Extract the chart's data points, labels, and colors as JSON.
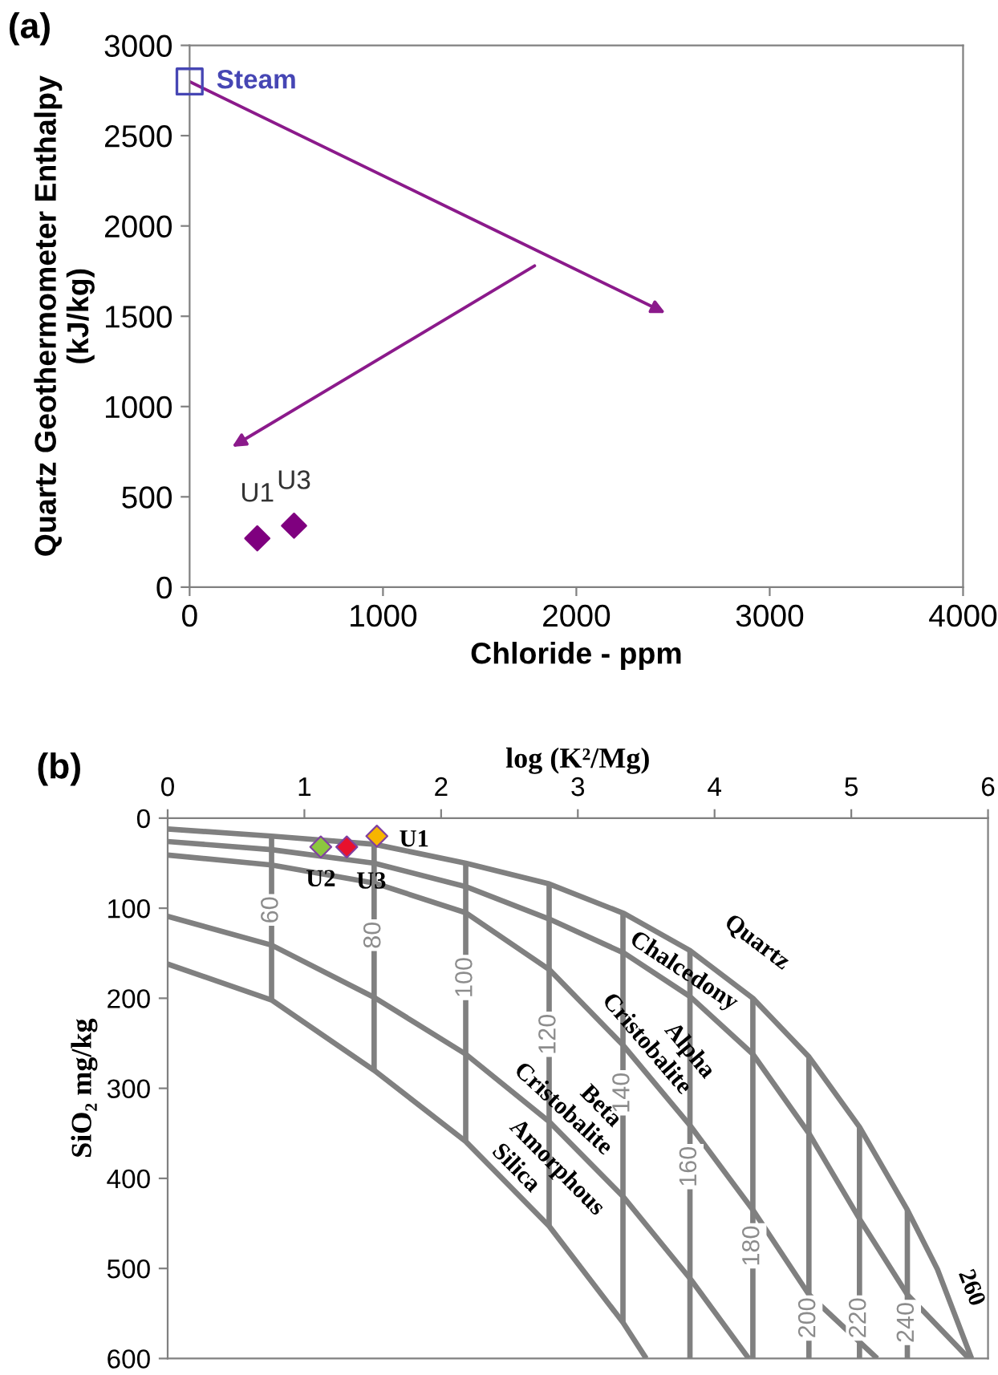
{
  "chart_data": [
    {
      "type": "scatter",
      "title": "(a)",
      "xlabel": "Chloride - ppm",
      "ylabel": "Quartz Geothermometer Enthalpy\n(kJ/kg)",
      "xlim": [
        0,
        4000
      ],
      "ylim": [
        0,
        3000
      ],
      "xticks": [
        0,
        1000,
        2000,
        3000,
        4000
      ],
      "yticks": [
        0,
        500,
        1000,
        1500,
        2000,
        2500,
        3000
      ],
      "legend": false,
      "series": [
        {
          "name": "Steam",
          "marker": "square",
          "x": [
            0
          ],
          "values": [
            2800
          ],
          "color": "#4646b4"
        },
        {
          "name": "U1",
          "marker": "diamond",
          "x": [
            350
          ],
          "values": [
            270
          ],
          "color": "#7f007f"
        },
        {
          "name": "U3",
          "marker": "diamond",
          "x": [
            540
          ],
          "values": [
            340
          ],
          "color": "#7f007f"
        }
      ]
    },
    {
      "type": "line",
      "title": "(b)",
      "xlabel": "log (K²/Mg)",
      "ylabel": "SiO₂ mg/kg",
      "xlim": [
        0,
        6
      ],
      "ylim": [
        600,
        0
      ],
      "xticks": [
        0,
        1,
        2,
        3,
        4,
        5,
        6
      ],
      "yticks": [
        0,
        100,
        200,
        300,
        400,
        500,
        600
      ],
      "legend": false,
      "series": [
        {
          "type": "line",
          "color": "#808080",
          "x": [
            0,
            0.76,
            1.51,
            2.18,
            2.79,
            3.34,
            3.82,
            4.28,
            4.69,
            5.06,
            5.41,
            5.63,
            5.88
          ],
          "values": [
            12,
            20,
            29,
            50,
            73,
            106,
            147,
            200,
            265,
            343,
            435,
            501,
            600
          ]
        },
        {
          "type": "line",
          "color": "#808080",
          "x": [
            0,
            0.76,
            1.51,
            2.18,
            2.79,
            3.34,
            3.82,
            4.28,
            4.69,
            5.06,
            5.41,
            5.86
          ],
          "values": [
            26,
            35,
            50,
            76,
            112,
            150,
            198,
            262,
            350,
            445,
            529,
            600
          ]
        },
        {
          "type": "line",
          "color": "#808080",
          "x": [
            0,
            0.76,
            1.51,
            2.18,
            2.79,
            3.33,
            3.83,
            4.28,
            4.69,
            5.19
          ],
          "values": [
            41,
            52,
            72,
            105,
            168,
            252,
            343,
            435,
            529,
            600
          ]
        },
        {
          "type": "line",
          "color": "#808080",
          "x": [
            0,
            0.76,
            1.51,
            2.18,
            2.79,
            3.33,
            3.83,
            4.25
          ],
          "values": [
            109,
            141,
            199,
            262,
            337,
            420,
            513,
            600
          ]
        },
        {
          "type": "line",
          "color": "#808080",
          "x": [
            0,
            0.76,
            1.51,
            2.18,
            2.79,
            3.33,
            3.5
          ],
          "values": [
            162,
            202,
            280,
            359,
            453,
            560,
            600
          ]
        },
        {
          "type": "line",
          "color": "#808080",
          "x": [
            0.76,
            0.76
          ],
          "values": [
            20,
            202
          ]
        },
        {
          "type": "line",
          "color": "#808080",
          "x": [
            1.51,
            1.51
          ],
          "values": [
            29,
            280
          ]
        },
        {
          "type": "line",
          "color": "#808080",
          "x": [
            2.18,
            2.18
          ],
          "values": [
            50,
            359
          ]
        },
        {
          "type": "line",
          "color": "#808080",
          "x": [
            2.79,
            2.79
          ],
          "values": [
            73,
            453
          ]
        },
        {
          "type": "line",
          "color": "#808080",
          "x": [
            3.33,
            3.33
          ],
          "values": [
            106,
            560
          ]
        },
        {
          "type": "line",
          "color": "#808080",
          "x": [
            3.82,
            3.82
          ],
          "values": [
            147,
            600
          ]
        },
        {
          "type": "line",
          "color": "#808080",
          "x": [
            4.28,
            4.28
          ],
          "values": [
            200,
            600
          ]
        },
        {
          "type": "line",
          "color": "#808080",
          "x": [
            4.69,
            4.69
          ],
          "values": [
            265,
            600
          ]
        },
        {
          "type": "line",
          "color": "#808080",
          "x": [
            5.06,
            5.06
          ],
          "values": [
            343,
            600
          ]
        },
        {
          "type": "line",
          "color": "#808080",
          "x": [
            5.41,
            5.41
          ],
          "values": [
            435,
            600
          ]
        },
        {
          "name": "U1",
          "type": "scatter",
          "marker": "diamond",
          "x": [
            1.53
          ],
          "values": [
            20
          ],
          "color": "#f7b500"
        },
        {
          "name": "U2",
          "type": "scatter",
          "marker": "diamond",
          "x": [
            1.12
          ],
          "values": [
            32
          ],
          "color": "#8cc63f"
        },
        {
          "name": "U3",
          "type": "scatter",
          "marker": "diamond",
          "x": [
            1.31
          ],
          "values": [
            32
          ],
          "color": "#e8112d"
        }
      ],
      "annotations": [
        {
          "text": "Quartz",
          "x": 4.1,
          "y": 180
        },
        {
          "text": "Chalcedony",
          "x": 3.7,
          "y": 187
        },
        {
          "text": "Alpha",
          "x": 3.55,
          "y": 292
        },
        {
          "text": "Cristobalite",
          "x": 3.4,
          "y": 264
        },
        {
          "text": "Beta",
          "x": 2.92,
          "y": 357
        },
        {
          "text": "Cristobalite",
          "x": 2.8,
          "y": 338
        },
        {
          "text": "Amorphous",
          "x": 2.6,
          "y": 425
        },
        {
          "text": "Silica",
          "x": 2.45,
          "y": 403
        },
        {
          "text": "60",
          "x": 0.76,
          "y": 102
        },
        {
          "text": "80",
          "x": 1.51,
          "y": 130
        },
        {
          "text": "100",
          "x": 2.18,
          "y": 177
        },
        {
          "text": "120",
          "x": 2.79,
          "y": 240
        },
        {
          "text": "140",
          "x": 3.33,
          "y": 305
        },
        {
          "text": "160",
          "x": 3.82,
          "y": 387
        },
        {
          "text": "180",
          "x": 4.28,
          "y": 475
        },
        {
          "text": "200",
          "x": 4.69,
          "y": 555
        },
        {
          "text": "220",
          "x": 5.06,
          "y": 555
        },
        {
          "text": "240",
          "x": 5.41,
          "y": 560
        },
        {
          "text": "260",
          "x": 5.75,
          "y": 529
        }
      ]
    }
  ]
}
